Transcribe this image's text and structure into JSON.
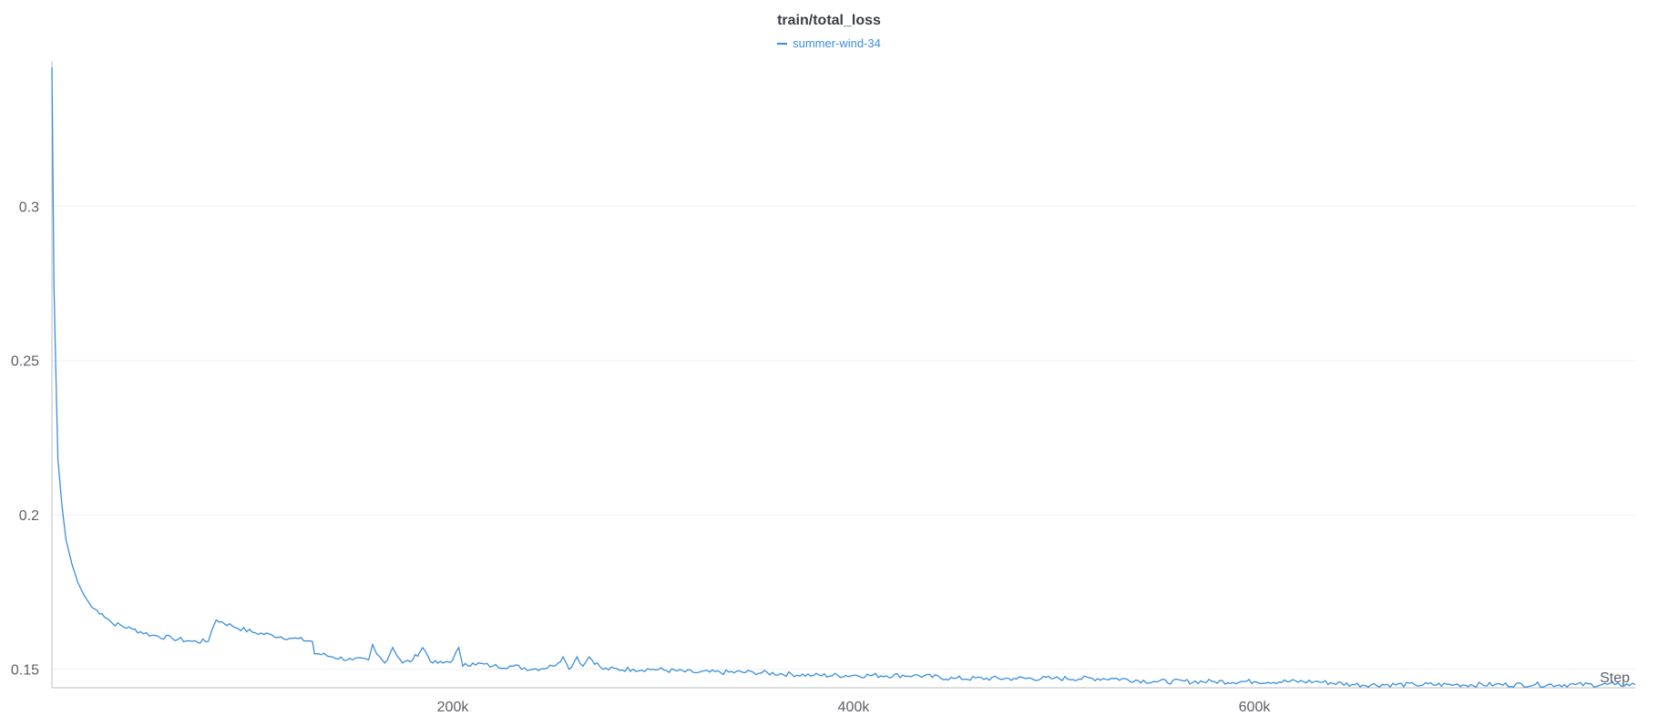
{
  "chart_data": {
    "type": "line",
    "title": "train/total_loss",
    "xlabel": "Step",
    "ylabel": "",
    "xlim": [
      0,
      790000
    ],
    "ylim": [
      0.144,
      0.347
    ],
    "x_ticks": [
      {
        "value": 200000,
        "label": "200k"
      },
      {
        "value": 400000,
        "label": "400k"
      },
      {
        "value": 600000,
        "label": "600k"
      }
    ],
    "y_ticks": [
      {
        "value": 0.15,
        "label": "0.15"
      },
      {
        "value": 0.2,
        "label": "0.2"
      },
      {
        "value": 0.25,
        "label": "0.25"
      },
      {
        "value": 0.3,
        "label": "0.3"
      }
    ],
    "grid": true,
    "legend_position": "top-center",
    "series": [
      {
        "name": "summer-wind-34",
        "color": "#3b8edb",
        "x": [
          0,
          1000,
          2000,
          3000,
          5000,
          7000,
          10000,
          13000,
          16000,
          20000,
          25000,
          30000,
          40000,
          50000,
          60000,
          70000,
          78000,
          80000,
          82000,
          90000,
          100000,
          110000,
          120000,
          130000,
          131000,
          133000,
          140000,
          150000,
          158000,
          160000,
          162000,
          166000,
          170000,
          175000,
          180000,
          185000,
          190000,
          195000,
          200000,
          203000,
          205000,
          210000,
          220000,
          230000,
          240000,
          250000,
          255000,
          258000,
          262000,
          265000,
          268000,
          275000,
          290000,
          300000,
          320000,
          350000,
          380000,
          400000,
          430000,
          450000,
          480000,
          500000,
          530000,
          550000,
          580000,
          600000,
          630000,
          650000,
          680000,
          700000,
          720000,
          740000,
          760000,
          780000,
          790000
        ],
        "y": [
          0.345,
          0.275,
          0.245,
          0.218,
          0.203,
          0.192,
          0.184,
          0.178,
          0.174,
          0.17,
          0.168,
          0.165,
          0.163,
          0.161,
          0.16,
          0.159,
          0.159,
          0.163,
          0.166,
          0.164,
          0.162,
          0.161,
          0.16,
          0.159,
          0.155,
          0.155,
          0.154,
          0.153,
          0.153,
          0.158,
          0.155,
          0.152,
          0.157,
          0.152,
          0.153,
          0.157,
          0.152,
          0.152,
          0.153,
          0.157,
          0.151,
          0.152,
          0.151,
          0.151,
          0.15,
          0.151,
          0.154,
          0.15,
          0.154,
          0.151,
          0.154,
          0.15,
          0.15,
          0.15,
          0.149,
          0.149,
          0.148,
          0.148,
          0.148,
          0.147,
          0.147,
          0.147,
          0.147,
          0.146,
          0.146,
          0.146,
          0.146,
          0.145,
          0.145,
          0.145,
          0.145,
          0.145,
          0.145,
          0.145,
          0.145
        ]
      }
    ]
  }
}
